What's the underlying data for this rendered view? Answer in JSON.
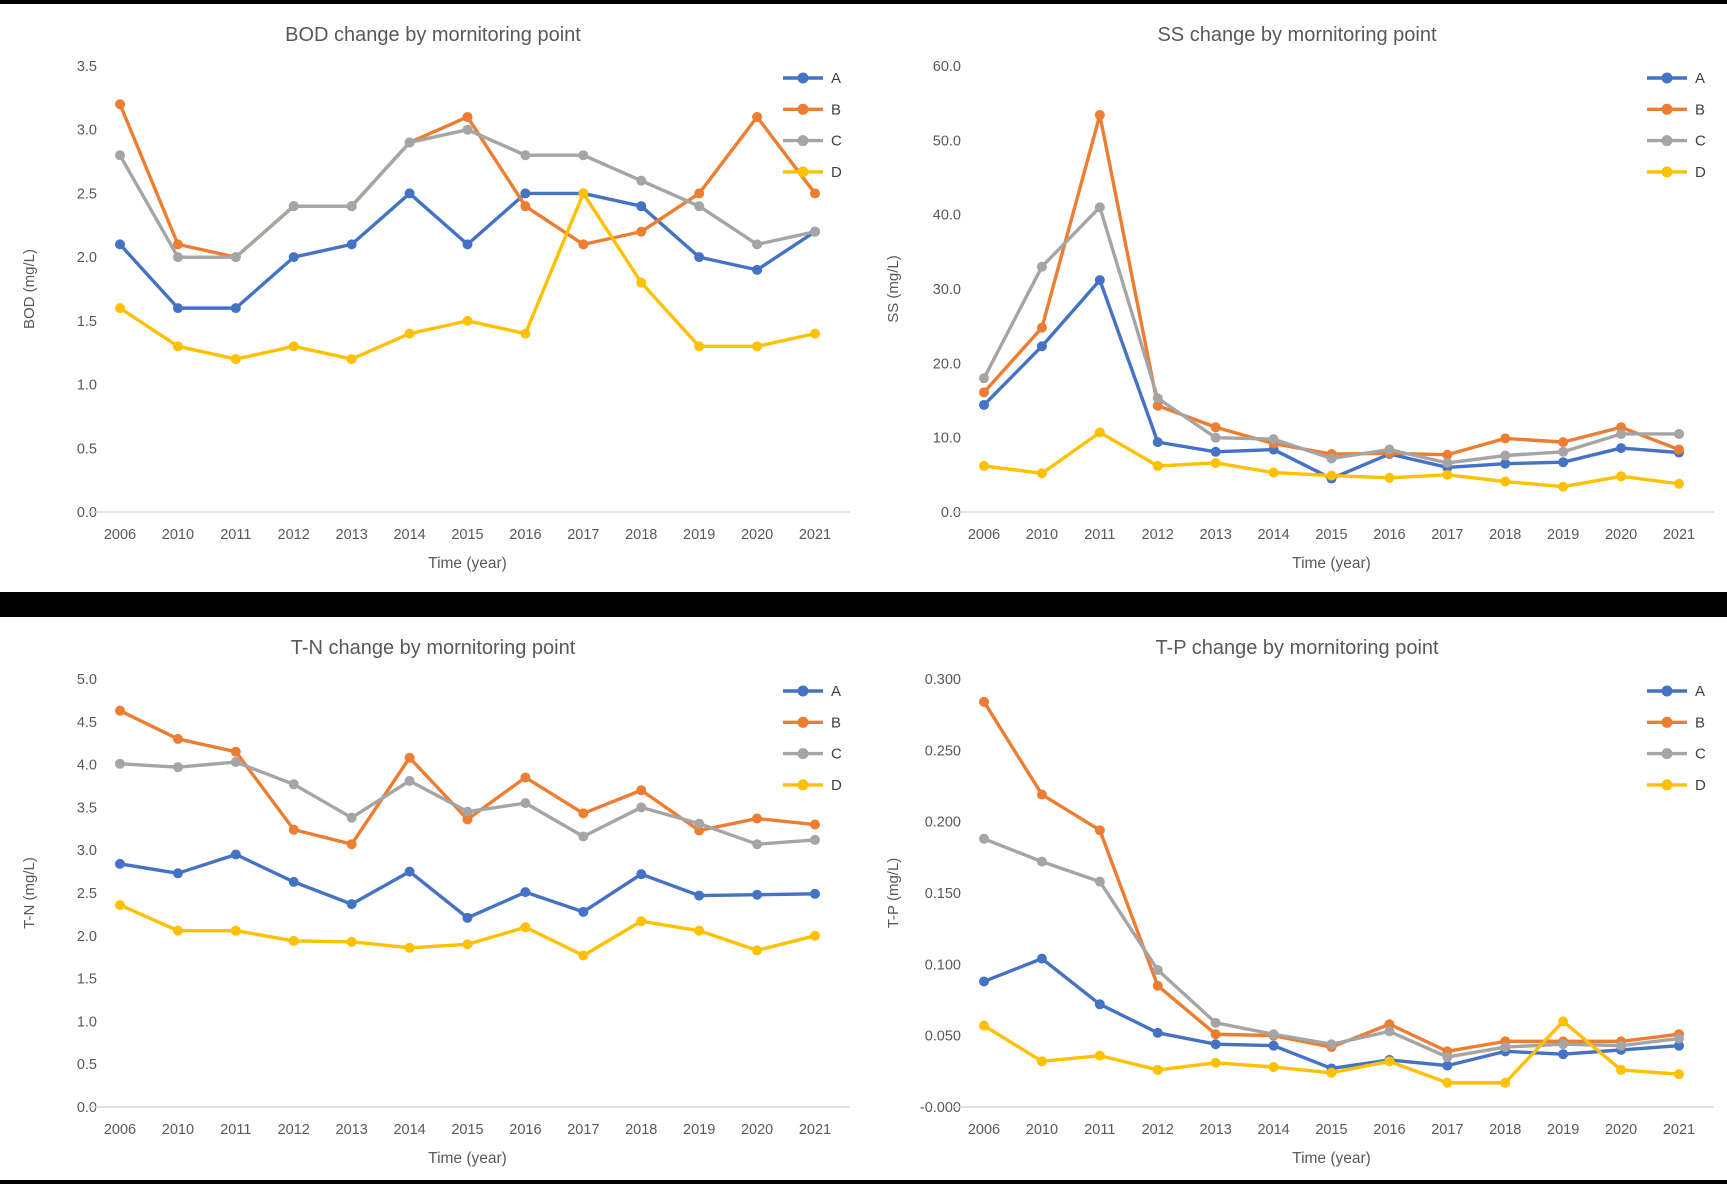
{
  "page": {
    "background": "#FFFFFF",
    "bars_color": "#000000"
  },
  "text_color": "#595959",
  "axis_line_color": "#D9D9D9",
  "series_colors": {
    "A": "#4472C4",
    "B": "#ED7D31",
    "C": "#A5A5A5",
    "D": "#FFC000"
  },
  "chart_data": [
    {
      "id": "bod",
      "type": "line",
      "title": "BOD change by mornitoring point",
      "xlabel": "Time (year)",
      "ylabel": "BOD (mg/L)",
      "ylim": [
        0,
        3.5
      ],
      "ytick_step": 0.5,
      "ytick_decimals": 1,
      "grid": false,
      "legend_position": "top-right",
      "marker": "circle",
      "categories": [
        "2006",
        "2010",
        "2011",
        "2012",
        "2013",
        "2014",
        "2015",
        "2016",
        "2017",
        "2018",
        "2019",
        "2020",
        "2021"
      ],
      "series": [
        {
          "name": "A",
          "values": [
            2.1,
            1.6,
            1.6,
            2.0,
            2.1,
            2.5,
            2.1,
            2.5,
            2.5,
            2.4,
            2.0,
            1.9,
            2.2
          ]
        },
        {
          "name": "B",
          "values": [
            3.2,
            2.1,
            2.0,
            2.4,
            2.4,
            2.9,
            3.1,
            2.4,
            2.1,
            2.2,
            2.5,
            3.1,
            2.5
          ]
        },
        {
          "name": "C",
          "values": [
            2.8,
            2.0,
            2.0,
            2.4,
            2.4,
            2.9,
            3.0,
            2.8,
            2.8,
            2.6,
            2.4,
            2.1,
            2.2
          ]
        },
        {
          "name": "D",
          "values": [
            1.6,
            1.3,
            1.2,
            1.3,
            1.2,
            1.4,
            1.5,
            1.4,
            2.5,
            1.8,
            1.3,
            1.3,
            1.4
          ]
        }
      ]
    },
    {
      "id": "ss",
      "type": "line",
      "title": "SS change by mornitoring point",
      "xlabel": "Time (year)",
      "ylabel": "SS (mg/L)",
      "ylim": [
        0,
        60
      ],
      "ytick_step": 10,
      "ytick_decimals": 1,
      "grid": false,
      "legend_position": "top-right",
      "marker": "circle",
      "categories": [
        "2006",
        "2010",
        "2011",
        "2012",
        "2013",
        "2014",
        "2015",
        "2016",
        "2017",
        "2018",
        "2019",
        "2020",
        "2021"
      ],
      "series": [
        {
          "name": "A",
          "values": [
            14.4,
            22.3,
            31.2,
            9.4,
            8.1,
            8.4,
            4.5,
            7.8,
            6.0,
            6.5,
            6.7,
            8.6,
            8.0
          ]
        },
        {
          "name": "B",
          "values": [
            16.1,
            24.8,
            53.4,
            14.3,
            11.4,
            9.2,
            7.8,
            7.9,
            7.7,
            9.9,
            9.4,
            11.4,
            8.4
          ]
        },
        {
          "name": "C",
          "values": [
            18.0,
            33.0,
            41.0,
            15.3,
            10.0,
            9.8,
            7.2,
            8.4,
            6.6,
            7.6,
            8.1,
            10.5,
            10.5
          ]
        },
        {
          "name": "D",
          "values": [
            6.2,
            5.2,
            10.7,
            6.2,
            6.6,
            5.3,
            4.9,
            4.6,
            5.0,
            4.1,
            3.4,
            4.8,
            3.8
          ]
        }
      ]
    },
    {
      "id": "tn",
      "type": "line",
      "title": "T-N change by mornitoring point",
      "xlabel": "Time (year)",
      "ylabel": "T-N (mg/L)",
      "ylim": [
        0,
        5.0
      ],
      "ytick_step": 0.5,
      "ytick_decimals": 1,
      "grid": false,
      "legend_position": "top-right",
      "marker": "circle",
      "categories": [
        "2006",
        "2010",
        "2011",
        "2012",
        "2013",
        "2014",
        "2015",
        "2016",
        "2017",
        "2018",
        "2019",
        "2020",
        "2021"
      ],
      "series": [
        {
          "name": "A",
          "values": [
            2.84,
            2.73,
            2.95,
            2.63,
            2.37,
            2.75,
            2.21,
            2.51,
            2.28,
            2.72,
            2.47,
            2.48,
            2.49
          ]
        },
        {
          "name": "B",
          "values": [
            4.63,
            4.3,
            4.15,
            3.24,
            3.07,
            4.08,
            3.36,
            3.85,
            3.43,
            3.7,
            3.23,
            3.37,
            3.3
          ]
        },
        {
          "name": "C",
          "values": [
            4.01,
            3.97,
            4.03,
            3.77,
            3.38,
            3.81,
            3.45,
            3.55,
            3.16,
            3.5,
            3.31,
            3.07,
            3.12
          ]
        },
        {
          "name": "D",
          "values": [
            2.36,
            2.06,
            2.06,
            1.94,
            1.93,
            1.86,
            1.9,
            2.1,
            1.77,
            2.17,
            2.06,
            1.83,
            2.0
          ]
        }
      ]
    },
    {
      "id": "tp",
      "type": "line",
      "title": "T-P change by mornitoring point",
      "xlabel": "Time (year)",
      "ylabel": "T-P (mg/L)",
      "ylim": [
        0,
        0.3
      ],
      "ytick_step": 0.05,
      "ytick_decimals": 3,
      "grid": false,
      "legend_position": "top-right",
      "marker": "circle",
      "categories": [
        "2006",
        "2010",
        "2011",
        "2012",
        "2013",
        "2014",
        "2015",
        "2016",
        "2017",
        "2018",
        "2019",
        "2020",
        "2021"
      ],
      "series": [
        {
          "name": "A",
          "values": [
            0.088,
            0.104,
            0.072,
            0.052,
            0.044,
            0.043,
            0.027,
            0.033,
            0.029,
            0.039,
            0.037,
            0.04,
            0.043
          ]
        },
        {
          "name": "B",
          "values": [
            0.284,
            0.219,
            0.194,
            0.085,
            0.051,
            0.05,
            0.042,
            0.058,
            0.039,
            0.046,
            0.046,
            0.046,
            0.051
          ]
        },
        {
          "name": "C",
          "values": [
            0.188,
            0.172,
            0.158,
            0.096,
            0.059,
            0.051,
            0.044,
            0.053,
            0.035,
            0.042,
            0.044,
            0.043,
            0.048
          ]
        },
        {
          "name": "D",
          "values": [
            0.057,
            0.032,
            0.036,
            0.026,
            0.031,
            0.028,
            0.024,
            0.032,
            0.017,
            0.017,
            0.06,
            0.026,
            0.023
          ]
        }
      ]
    }
  ]
}
